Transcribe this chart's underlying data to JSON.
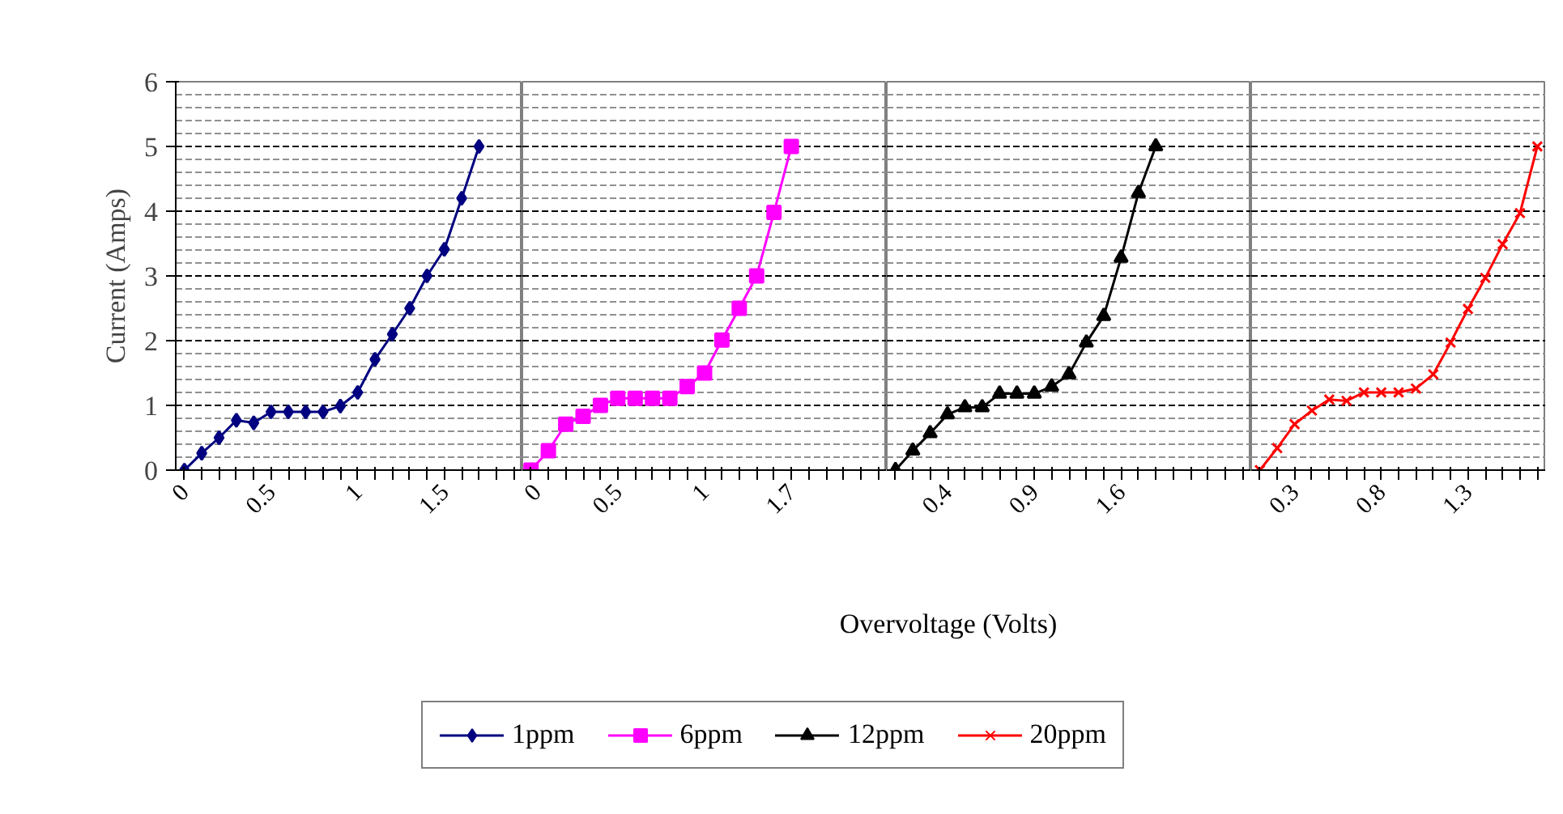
{
  "chart_data": [
    {
      "type": "line",
      "ylabel": "Current (Amps)",
      "ylim": [
        0,
        6
      ],
      "yticks": [
        0,
        1,
        2,
        3,
        4,
        5,
        6
      ],
      "grid": "y",
      "legend": "bottom",
      "marker": "diamond",
      "categories": [
        "0",
        null,
        null,
        null,
        null,
        "0.5",
        null,
        null,
        null,
        null,
        "1",
        null,
        null,
        null,
        null,
        "1.5",
        null,
        null,
        null,
        null
      ],
      "series": [
        {
          "name": "1ppm",
          "color": "#000080",
          "values": [
            0,
            0.26,
            0.5,
            0.77,
            0.73,
            0.9,
            0.9,
            0.9,
            0.9,
            0.99,
            1.2,
            1.71,
            2.1,
            2.5,
            3.0,
            3.41,
            4.2,
            5.0,
            null,
            null
          ]
        }
      ]
    },
    {
      "type": "line",
      "xlabel": "Overvoltage (Volts)",
      "ylim": [
        0,
        6
      ],
      "yticks": [
        0,
        1,
        2,
        3,
        4,
        5,
        6
      ],
      "grid": "y",
      "legend": "bottom",
      "marker": "square",
      "tick_labels": "x",
      "categories": [
        "0",
        null,
        null,
        null,
        null,
        "0.5",
        null,
        null,
        null,
        null,
        "1",
        null,
        null,
        null,
        null,
        "1.7",
        null,
        null,
        null,
        null,
        null
      ],
      "series": [
        {
          "name": "6ppm",
          "color": "#ff00ff",
          "values": [
            0,
            0.3,
            0.71,
            0.83,
            1.0,
            1.11,
            1.11,
            1.11,
            1.11,
            1.29,
            1.5,
            2.01,
            2.5,
            3.0,
            3.98,
            5.0,
            null,
            null,
            null,
            null,
            null
          ]
        }
      ]
    },
    {
      "type": "line",
      "ylim": [
        0,
        6
      ],
      "yticks": [
        0,
        1,
        2,
        3,
        4,
        5,
        6
      ],
      "grid": "y",
      "legend": "bottom",
      "marker": "triangle",
      "tick_labels": "x",
      "categories": [
        null,
        null,
        null,
        "0.4",
        null,
        null,
        null,
        null,
        "0.9",
        null,
        null,
        null,
        null,
        "1.6",
        null,
        null,
        null,
        null,
        null,
        null,
        null
      ],
      "series": [
        {
          "name": "12ppm",
          "color": "#000000",
          "values": [
            0,
            0.3,
            0.57,
            0.86,
            0.97,
            0.97,
            1.18,
            1.18,
            1.18,
            1.29,
            1.48,
            1.97,
            2.38,
            3.28,
            4.28,
            5.0,
            null,
            null,
            null,
            null,
            null
          ]
        }
      ]
    },
    {
      "type": "line",
      "ylim": [
        0,
        6
      ],
      "yticks": [
        0,
        1,
        2,
        3,
        4,
        5,
        6
      ],
      "grid": "y",
      "legend": "bottom",
      "marker": "cross",
      "tick_labels": "x",
      "categories": [
        null,
        null,
        "0.3",
        null,
        null,
        null,
        null,
        "0.8",
        null,
        null,
        null,
        null,
        "1.3",
        null,
        null,
        null,
        null
      ],
      "series": [
        {
          "name": "20ppm",
          "color": "#ff0000",
          "values": [
            0,
            0.34,
            0.71,
            0.92,
            1.09,
            1.07,
            1.2,
            1.2,
            1.2,
            1.26,
            1.48,
            1.97,
            2.49,
            2.97,
            3.49,
            3.97,
            5.0
          ]
        }
      ]
    }
  ]
}
